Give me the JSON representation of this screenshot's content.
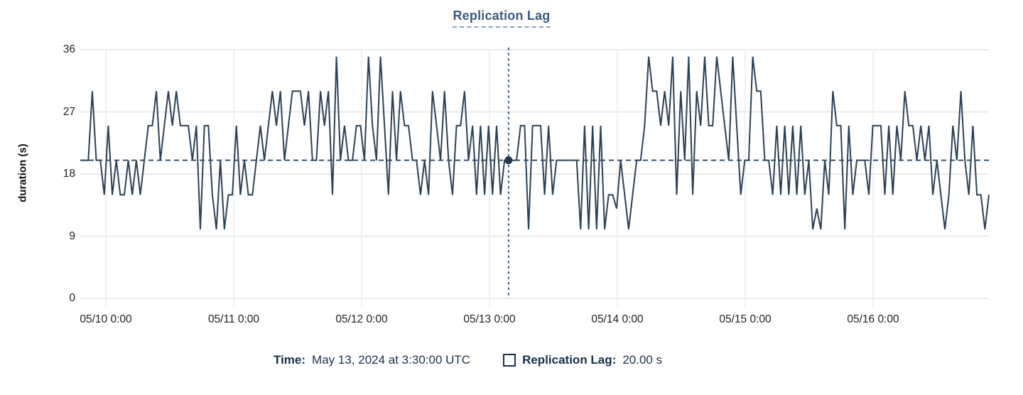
{
  "title": "Replication Lag",
  "tooltip": {
    "time_label": "Time:",
    "time_value": "May 13, 2024 at 3:30:00 UTC",
    "series_label": "Replication Lag:",
    "series_value": "20.00 s"
  },
  "chart_data": {
    "type": "line",
    "title": "Replication Lag",
    "xlabel": "",
    "ylabel": "duration (s)",
    "ylim": [
      0,
      36
    ],
    "y_ticks": [
      0,
      9,
      18,
      27,
      36
    ],
    "x_tick_labels": [
      "05/10 0:00",
      "05/11 0:00",
      "05/12 0:00",
      "05/13 0:00",
      "05/14 0:00",
      "05/15 0:00",
      "05/16 0:00"
    ],
    "grid": true,
    "legend_position": "bottom",
    "reference_line": {
      "value": 20,
      "style": "dashed"
    },
    "crosshair": {
      "index": 107,
      "value": 20,
      "time": "May 13, 2024 at 3:30:00 UTC",
      "value_label": "20.00 s"
    },
    "series": [
      {
        "name": "Replication Lag",
        "unit": "s",
        "values": [
          20,
          20,
          20,
          30,
          20,
          20,
          15,
          25,
          15,
          20,
          15,
          15,
          20,
          15,
          20,
          15,
          20,
          25,
          25,
          30,
          20,
          25,
          30,
          25,
          30,
          25,
          25,
          25,
          20,
          25,
          10,
          25,
          25,
          15,
          10,
          20,
          10,
          15,
          15,
          25,
          15,
          20,
          15,
          15,
          20,
          25,
          20,
          25,
          30,
          25,
          30,
          20,
          25,
          30,
          30,
          30,
          25,
          30,
          20,
          20,
          30,
          25,
          30,
          15,
          35,
          20,
          25,
          20,
          20,
          25,
          25,
          20,
          35,
          25,
          20,
          35,
          25,
          15,
          30,
          20,
          30,
          25,
          25,
          20,
          20,
          15,
          20,
          15,
          30,
          25,
          20,
          30,
          20,
          15,
          25,
          25,
          30,
          20,
          25,
          15,
          25,
          15,
          25,
          15,
          25,
          15,
          20,
          20,
          20,
          20,
          25,
          25,
          10,
          25,
          25,
          25,
          15,
          25,
          15,
          20,
          20,
          20,
          20,
          20,
          20,
          10,
          25,
          10,
          25,
          10,
          25,
          10,
          15,
          15,
          13,
          20,
          15,
          10,
          15,
          20,
          20,
          25,
          35,
          30,
          30,
          25,
          30,
          25,
          35,
          15,
          30,
          20,
          35,
          15,
          30,
          25,
          35,
          25,
          25,
          35,
          30,
          25,
          20,
          35,
          25,
          15,
          20,
          20,
          35,
          30,
          30,
          20,
          20,
          15,
          25,
          15,
          25,
          15,
          25,
          15,
          25,
          15,
          20,
          10,
          13,
          10,
          20,
          15,
          30,
          25,
          25,
          10,
          25,
          15,
          20,
          20,
          20,
          15,
          25,
          25,
          25,
          15,
          25,
          15,
          25,
          20,
          30,
          25,
          25,
          20,
          25,
          20,
          25,
          15,
          20,
          15,
          10,
          15,
          25,
          20,
          30,
          20,
          15,
          25,
          15,
          15,
          10,
          15
        ]
      }
    ],
    "colors": {
      "line": "#2b4156",
      "crosshair": "#3d6080",
      "reference": "#2e4a63",
      "dot": "#24384f",
      "grid": "#eaeaea",
      "title": "#3b5a7c",
      "legend_text": "#16304d",
      "tick_text": "#212121"
    }
  }
}
